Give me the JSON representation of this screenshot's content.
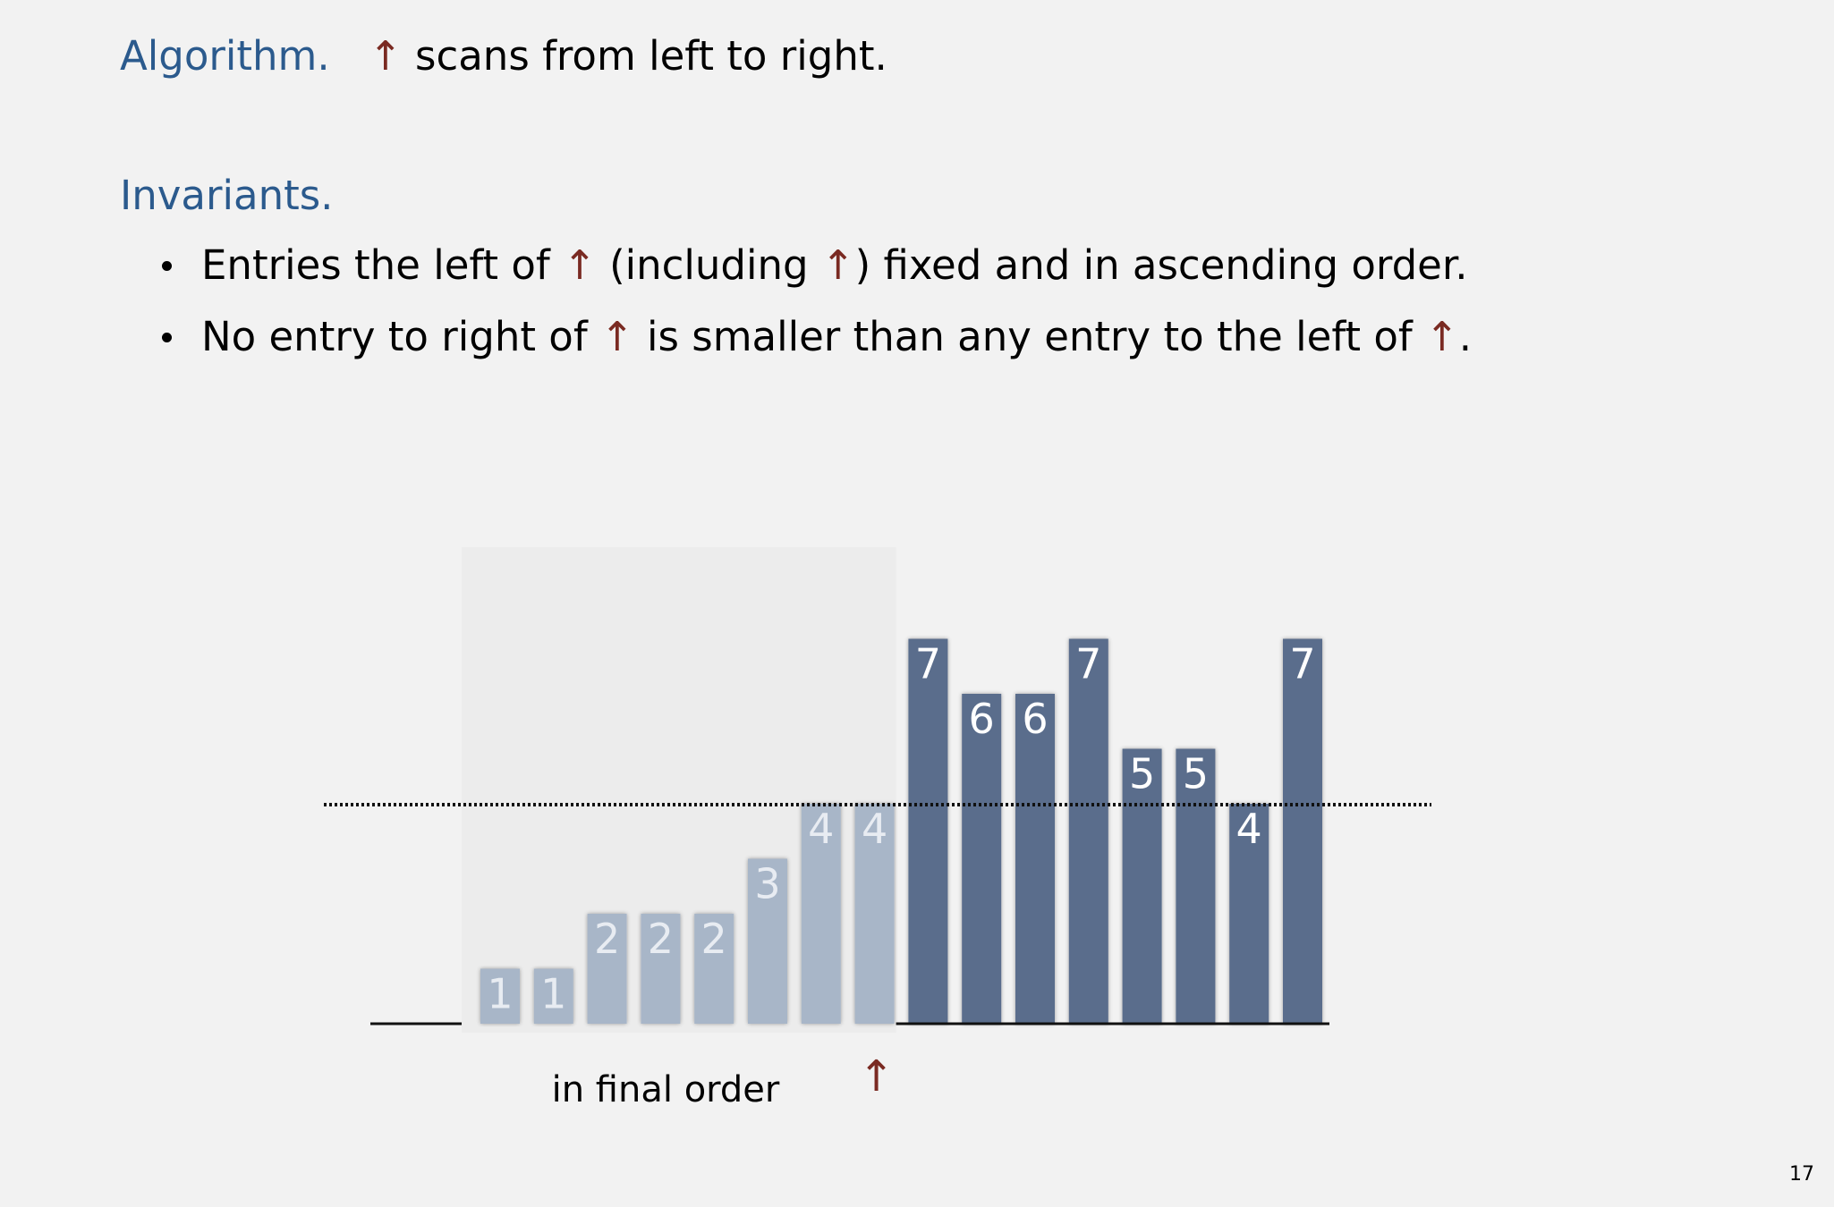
{
  "algorithm": {
    "label": "Algorithm.",
    "arrow": "↑",
    "text": "scans from left to right."
  },
  "invariants": {
    "label": "Invariants.",
    "bullets": [
      {
        "parts": [
          "Entries the left of ",
          "↑",
          " (including ",
          "↑",
          ") fixed and in ascending order."
        ]
      },
      {
        "parts": [
          "No entry to right of ",
          "↑",
          " is smaller than any entry to the left of ",
          "↑",
          "."
        ]
      }
    ]
  },
  "diagram": {
    "bars": [
      {
        "label": "1",
        "value": 1,
        "region": "final"
      },
      {
        "label": "1",
        "value": 1,
        "region": "final"
      },
      {
        "label": "2",
        "value": 2,
        "region": "final"
      },
      {
        "label": "2",
        "value": 2,
        "region": "final"
      },
      {
        "label": "2",
        "value": 2,
        "region": "final"
      },
      {
        "label": "3",
        "value": 3,
        "region": "final"
      },
      {
        "label": "4",
        "value": 4,
        "region": "final"
      },
      {
        "label": "4",
        "value": 4,
        "region": "final"
      },
      {
        "label": "7",
        "value": 7,
        "region": "remaining"
      },
      {
        "label": "6",
        "value": 6,
        "region": "remaining"
      },
      {
        "label": "6",
        "value": 6,
        "region": "remaining"
      },
      {
        "label": "7",
        "value": 7,
        "region": "remaining"
      },
      {
        "label": "5",
        "value": 5,
        "region": "remaining"
      },
      {
        "label": "5",
        "value": 5,
        "region": "remaining"
      },
      {
        "label": "4",
        "value": 4,
        "region": "remaining"
      },
      {
        "label": "7",
        "value": 7,
        "region": "remaining"
      }
    ],
    "pointer_index": 7,
    "pointer_arrow": "↑",
    "threshold_value": 4,
    "final_region_label": "in final order",
    "colors": {
      "final_bar": "#a8b6c8",
      "remaining_bar": "#5a6d8c",
      "final_region_bg": "#ececec",
      "arrow": "#7a2a22",
      "heading": "#2b5a8d"
    }
  },
  "page_number": "17"
}
